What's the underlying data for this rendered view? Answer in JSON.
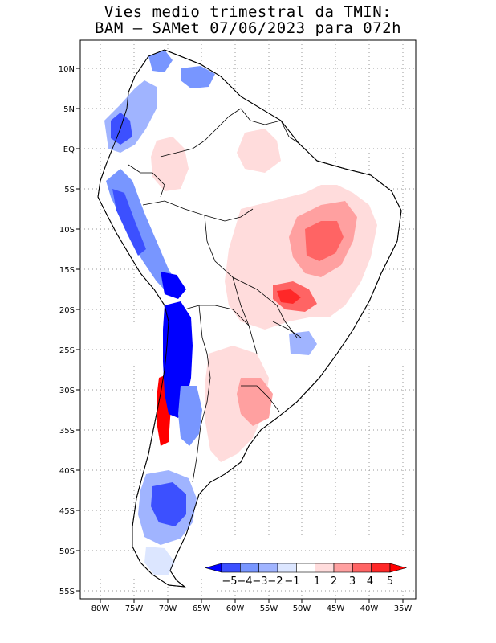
{
  "title": {
    "line1": "Vies medio trimestral da TMIN:",
    "line2": "BAM – SAMet 07/06/2023  para 072h"
  },
  "map": {
    "lat_ticks": [
      "10N",
      "5N",
      "EQ",
      "5S",
      "10S",
      "15S",
      "20S",
      "25S",
      "30S",
      "35S",
      "40S",
      "45S",
      "50S",
      "55S"
    ],
    "lon_ticks": [
      "80W",
      "75W",
      "70W",
      "65W",
      "60W",
      "55W",
      "50W",
      "45W",
      "40W",
      "35W"
    ],
    "grid": "dotted"
  },
  "colorbar": {
    "labels": [
      "−5",
      "−4",
      "−3",
      "−2",
      "−1",
      "1",
      "2",
      "3",
      "4",
      "5"
    ],
    "colors": [
      "#0000ff",
      "#3c50ff",
      "#7896ff",
      "#a0b4ff",
      "#dce6ff",
      "#ffffff",
      "#ffdcdc",
      "#ffa0a0",
      "#ff6464",
      "#ff2828",
      "#ff0000"
    ]
  },
  "colors": {
    "land_base": "#ffffff",
    "border": "#000000"
  }
}
